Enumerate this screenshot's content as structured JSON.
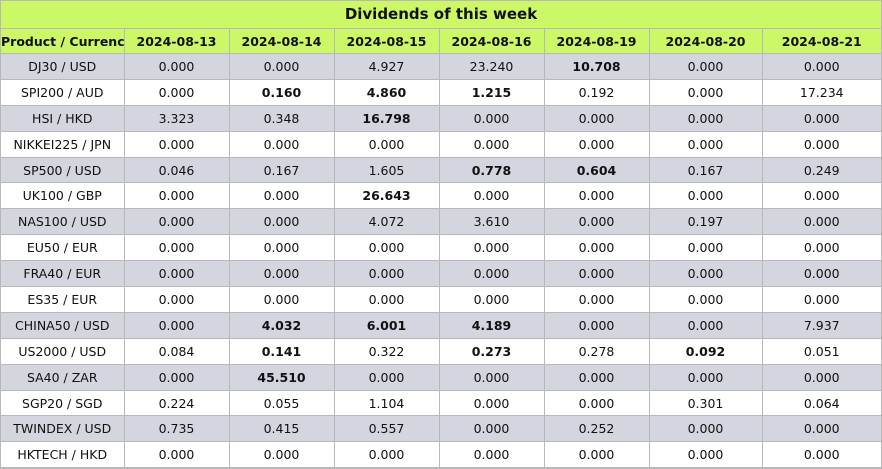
{
  "title": "Dividends of this week",
  "headers": [
    "Product / Currency",
    "2024-08-13",
    "2024-08-14",
    "2024-08-15",
    "2024-08-16",
    "2024-08-19",
    "2024-08-20",
    "2024-08-21"
  ],
  "rows": [
    {
      "product": "DJ30 / USD",
      "values": [
        "0.000",
        "0.000",
        "4.927",
        "23.240",
        "10.708",
        "0.000",
        "0.000"
      ],
      "bold": [
        4
      ]
    },
    {
      "product": "SPI200 / AUD",
      "values": [
        "0.000",
        "0.160",
        "4.860",
        "1.215",
        "0.192",
        "0.000",
        "17.234"
      ],
      "bold": [
        1,
        2,
        3
      ]
    },
    {
      "product": "HSI / HKD",
      "values": [
        "3.323",
        "0.348",
        "16.798",
        "0.000",
        "0.000",
        "0.000",
        "0.000"
      ],
      "bold": [
        2
      ]
    },
    {
      "product": "NIKKEI225 / JPN",
      "values": [
        "0.000",
        "0.000",
        "0.000",
        "0.000",
        "0.000",
        "0.000",
        "0.000"
      ],
      "bold": []
    },
    {
      "product": "SP500 / USD",
      "values": [
        "0.046",
        "0.167",
        "1.605",
        "0.778",
        "0.604",
        "0.167",
        "0.249"
      ],
      "bold": [
        3,
        4
      ]
    },
    {
      "product": "UK100 / GBP",
      "values": [
        "0.000",
        "0.000",
        "26.643",
        "0.000",
        "0.000",
        "0.000",
        "0.000"
      ],
      "bold": [
        2
      ]
    },
    {
      "product": "NAS100 / USD",
      "values": [
        "0.000",
        "0.000",
        "4.072",
        "3.610",
        "0.000",
        "0.197",
        "0.000"
      ],
      "bold": []
    },
    {
      "product": "EU50 / EUR",
      "values": [
        "0.000",
        "0.000",
        "0.000",
        "0.000",
        "0.000",
        "0.000",
        "0.000"
      ],
      "bold": []
    },
    {
      "product": "FRA40 / EUR",
      "values": [
        "0.000",
        "0.000",
        "0.000",
        "0.000",
        "0.000",
        "0.000",
        "0.000"
      ],
      "bold": []
    },
    {
      "product": "ES35 / EUR",
      "values": [
        "0.000",
        "0.000",
        "0.000",
        "0.000",
        "0.000",
        "0.000",
        "0.000"
      ],
      "bold": []
    },
    {
      "product": "CHINA50 / USD",
      "values": [
        "0.000",
        "4.032",
        "6.001",
        "4.189",
        "0.000",
        "0.000",
        "7.937"
      ],
      "bold": [
        1,
        2,
        3
      ]
    },
    {
      "product": "US2000 / USD",
      "values": [
        "0.084",
        "0.141",
        "0.322",
        "0.273",
        "0.278",
        "0.092",
        "0.051"
      ],
      "bold": [
        1,
        3,
        5
      ]
    },
    {
      "product": "SA40 / ZAR",
      "values": [
        "0.000",
        "45.510",
        "0.000",
        "0.000",
        "0.000",
        "0.000",
        "0.000"
      ],
      "bold": [
        1
      ]
    },
    {
      "product": "SGP20 / SGD",
      "values": [
        "0.224",
        "0.055",
        "1.104",
        "0.000",
        "0.000",
        "0.301",
        "0.064"
      ],
      "bold": []
    },
    {
      "product": "TWINDEX / USD",
      "values": [
        "0.735",
        "0.415",
        "0.557",
        "0.000",
        "0.252",
        "0.000",
        "0.000"
      ],
      "bold": []
    },
    {
      "product": "HKTECH / HKD",
      "values": [
        "0.000",
        "0.000",
        "0.000",
        "0.000",
        "0.000",
        "0.000",
        "0.000"
      ],
      "bold": []
    }
  ]
}
